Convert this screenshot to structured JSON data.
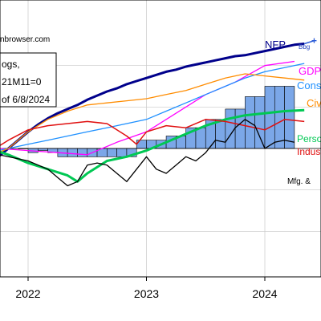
{
  "watermark": "nbrowser.com",
  "legend_box": {
    "lines": [
      "ogs,",
      "21M11=0",
      "of 6/8/2024"
    ]
  },
  "chart_data": {
    "type": "line",
    "x_ticks": [
      "2022",
      "2023",
      "2024"
    ],
    "x_start": "2021-07",
    "x_end": "2024-06",
    "y_min": -0.06,
    "y_max": 0.06,
    "baseline": 0,
    "grid": true,
    "bars": {
      "name": "",
      "color": "#7ba7e8",
      "months": [
        "2021-12",
        "2022-01",
        "2022-02",
        "2022-03",
        "2022-04",
        "2022-05",
        "2022-06",
        "2022-07",
        "2022-08",
        "2022-09",
        "2022-10",
        "2022-11",
        "2022-12",
        "2023-01",
        "2023-02",
        "2023-03",
        "2023-04",
        "2023-05",
        "2023-06",
        "2023-07",
        "2023-08",
        "2023-09",
        "2023-10",
        "2023-11",
        "2023-12",
        "2024-01",
        "2024-02",
        "2024-03"
      ],
      "values": [
        0.0,
        -0.002,
        -0.001,
        -0.002,
        -0.004,
        -0.004,
        -0.004,
        -0.004,
        -0.004,
        -0.004,
        -0.004,
        -0.004,
        0.004,
        0.004,
        0.004,
        0.006,
        0.006,
        0.01,
        0.01,
        0.014,
        0.014,
        0.019,
        0.019,
        0.025,
        0.025,
        0.03,
        0.03,
        0.03
      ]
    },
    "series": [
      {
        "name": "NFP",
        "color": "#00008b",
        "label_color": "#00008b",
        "x": [
          "2021-07",
          "2021-08",
          "2021-09",
          "2021-10",
          "2021-11",
          "2021-12",
          "2022-01",
          "2022-02",
          "2022-03",
          "2022-04",
          "2022-05",
          "2022-06",
          "2022-07",
          "2022-08",
          "2022-09",
          "2022-10",
          "2022-11",
          "2022-12",
          "2023-01",
          "2023-02",
          "2023-03",
          "2023-04",
          "2023-05",
          "2023-06",
          "2023-07",
          "2023-08",
          "2023-09",
          "2023-10",
          "2023-11",
          "2023-12",
          "2024-01",
          "2024-02",
          "2024-03",
          "2024-04",
          "2024-05"
        ],
        "y": [
          -0.016,
          -0.012,
          -0.008,
          -0.004,
          0.0,
          0.004,
          0.008,
          0.0115,
          0.0145,
          0.017,
          0.019,
          0.021,
          0.0235,
          0.0255,
          0.0275,
          0.029,
          0.031,
          0.0325,
          0.034,
          0.0355,
          0.037,
          0.038,
          0.0395,
          0.0405,
          0.0415,
          0.0425,
          0.0435,
          0.0445,
          0.045,
          0.046,
          0.047,
          0.048,
          0.049,
          0.05,
          0.0505
        ]
      },
      {
        "name": "Bbg",
        "color": "#2a5bd7",
        "label_color": "#1f3fbf",
        "x": [
          "2024-05",
          "2024-06"
        ],
        "y": [
          0.0505,
          0.052
        ]
      },
      {
        "name": "GDP",
        "color": "#ff00ff",
        "label_color": "#ff00ff",
        "x": [
          "2021-07",
          "2021-10",
          "2022-01",
          "2022-04",
          "2022-07",
          "2022-10",
          "2023-01",
          "2023-04",
          "2023-07",
          "2023-10",
          "2024-01",
          "2024-04"
        ],
        "y": [
          -0.004,
          0.0,
          -0.001,
          -0.002,
          -0.003,
          0.003,
          0.008,
          0.017,
          0.026,
          0.032,
          0.04,
          0.042
        ]
      },
      {
        "name": "Cons",
        "color": "#1e90ff",
        "label_color": "#1e90ff",
        "x": [
          "2021-07",
          "2021-09",
          "2021-11",
          "2022-01",
          "2022-03",
          "2022-05",
          "2022-07",
          "2022-09",
          "2022-11",
          "2023-01",
          "2023-03",
          "2023-05",
          "2023-07",
          "2023-09",
          "2023-11",
          "2024-01",
          "2024-03",
          "2024-05"
        ],
        "y": [
          -0.005,
          -0.002,
          0.0,
          0.002,
          0.004,
          0.006,
          0.008,
          0.01,
          0.012,
          0.014,
          0.018,
          0.022,
          0.026,
          0.03,
          0.034,
          0.037,
          0.039,
          0.041
        ]
      },
      {
        "name": "Civ",
        "color": "#ff8c00",
        "label_color": "#ff8c00",
        "x": [
          "2021-07",
          "2021-09",
          "2021-11",
          "2022-01",
          "2022-03",
          "2022-05",
          "2022-07",
          "2022-09",
          "2022-11",
          "2023-01",
          "2023-03",
          "2023-05",
          "2023-07",
          "2023-09",
          "2023-11",
          "2024-01",
          "2024-03",
          "2024-05"
        ],
        "y": [
          -0.008,
          -0.004,
          0.0,
          0.008,
          0.014,
          0.018,
          0.021,
          0.022,
          0.023,
          0.024,
          0.026,
          0.028,
          0.031,
          0.034,
          0.036,
          0.035,
          0.034,
          0.033
        ]
      },
      {
        "name": "Perso",
        "color": "#00c853",
        "label_color": "#00c853",
        "x": [
          "2021-07",
          "2021-09",
          "2021-11",
          "2022-01",
          "2022-03",
          "2022-05",
          "2022-06",
          "2022-07",
          "2022-09",
          "2022-11",
          "2023-01",
          "2023-03",
          "2023-05",
          "2023-07",
          "2023-09",
          "2023-11",
          "2024-01",
          "2024-03",
          "2024-05"
        ],
        "y": [
          0.002,
          0.0,
          -0.003,
          -0.007,
          -0.01,
          -0.013,
          -0.016,
          -0.012,
          -0.006,
          -0.004,
          -0.001,
          0.003,
          0.007,
          0.011,
          0.014,
          0.016,
          0.017,
          0.018,
          0.0185
        ]
      },
      {
        "name": "Indus",
        "color": "#e01010",
        "label_color": "#e01010",
        "x": [
          "2021-07",
          "2021-09",
          "2021-11",
          "2022-01",
          "2022-03",
          "2022-05",
          "2022-07",
          "2022-09",
          "2022-11",
          "2022-12",
          "2023-01",
          "2023-03",
          "2023-05",
          "2023-07",
          "2023-09",
          "2023-11",
          "2024-01",
          "2024-03",
          "2024-05"
        ],
        "y": [
          -0.006,
          -0.002,
          0.004,
          0.009,
          0.011,
          0.012,
          0.013,
          0.012,
          0.006,
          0.002,
          0.008,
          0.011,
          0.01,
          0.014,
          0.013,
          0.011,
          0.009,
          0.014,
          0.013
        ]
      },
      {
        "name": "Mfg. &",
        "color": "#000000",
        "label_color": "#000000",
        "x": [
          "2021-07",
          "2021-09",
          "2021-11",
          "2022-01",
          "2022-03",
          "2022-04",
          "2022-05",
          "2022-06",
          "2022-07",
          "2022-08",
          "2022-09",
          "2022-10",
          "2022-11",
          "2022-12",
          "2023-01",
          "2023-02",
          "2023-03",
          "2023-04",
          "2023-05",
          "2023-06",
          "2023-07",
          "2023-08",
          "2023-09",
          "2023-10",
          "2023-11",
          "2023-12",
          "2024-01",
          "2024-02",
          "2024-03",
          "2024-04"
        ],
        "y": [
          0.001,
          -0.002,
          -0.004,
          -0.006,
          -0.01,
          -0.014,
          -0.018,
          -0.016,
          -0.008,
          -0.007,
          -0.008,
          -0.012,
          -0.016,
          -0.01,
          -0.004,
          -0.01,
          -0.012,
          -0.008,
          -0.004,
          -0.006,
          -0.002,
          0.004,
          0.003,
          0.01,
          0.014,
          0.011,
          0.0,
          0.003,
          0.004,
          0.003
        ]
      }
    ],
    "label_positions": [
      {
        "name": "NFP",
        "ref": "2024-01",
        "dy": -0.004
      },
      {
        "name": "Bbg",
        "ref": "2024-06",
        "dy": 0.0005
      },
      {
        "name": "GDP",
        "ref": "2024-04",
        "dy": 0.004
      },
      {
        "name": "Cons",
        "ref": "2024-04",
        "dy": 0.0
      },
      {
        "name": "Civ",
        "ref": "2024-05",
        "dy": -0.003
      },
      {
        "name": "Perso",
        "ref": "2024-05",
        "dy": 0.003
      },
      {
        "name": "Indus",
        "ref": "2024-05",
        "dy": -0.004
      },
      {
        "name": "Mfg. &",
        "ref": "2024-04",
        "dy": 0.0
      }
    ]
  }
}
